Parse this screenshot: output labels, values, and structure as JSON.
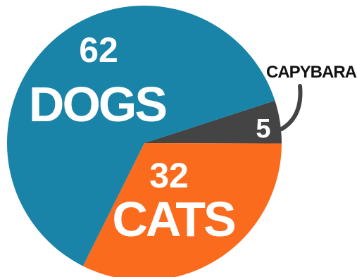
{
  "chart_data": {
    "type": "pie",
    "slices": [
      {
        "label": "DOGS",
        "value": 62,
        "value_text": "62",
        "color": "#1a84a8"
      },
      {
        "label": "CATS",
        "value": 32,
        "value_text": "32",
        "color": "#fb6b1d"
      },
      {
        "label": "CAPYBARA",
        "value": 5,
        "value_text": "5",
        "color": "#444444"
      }
    ],
    "legend": "none",
    "labels_inside": [
      "DOGS",
      "CATS"
    ],
    "label_outside_with_leader": "CAPYBARA"
  }
}
